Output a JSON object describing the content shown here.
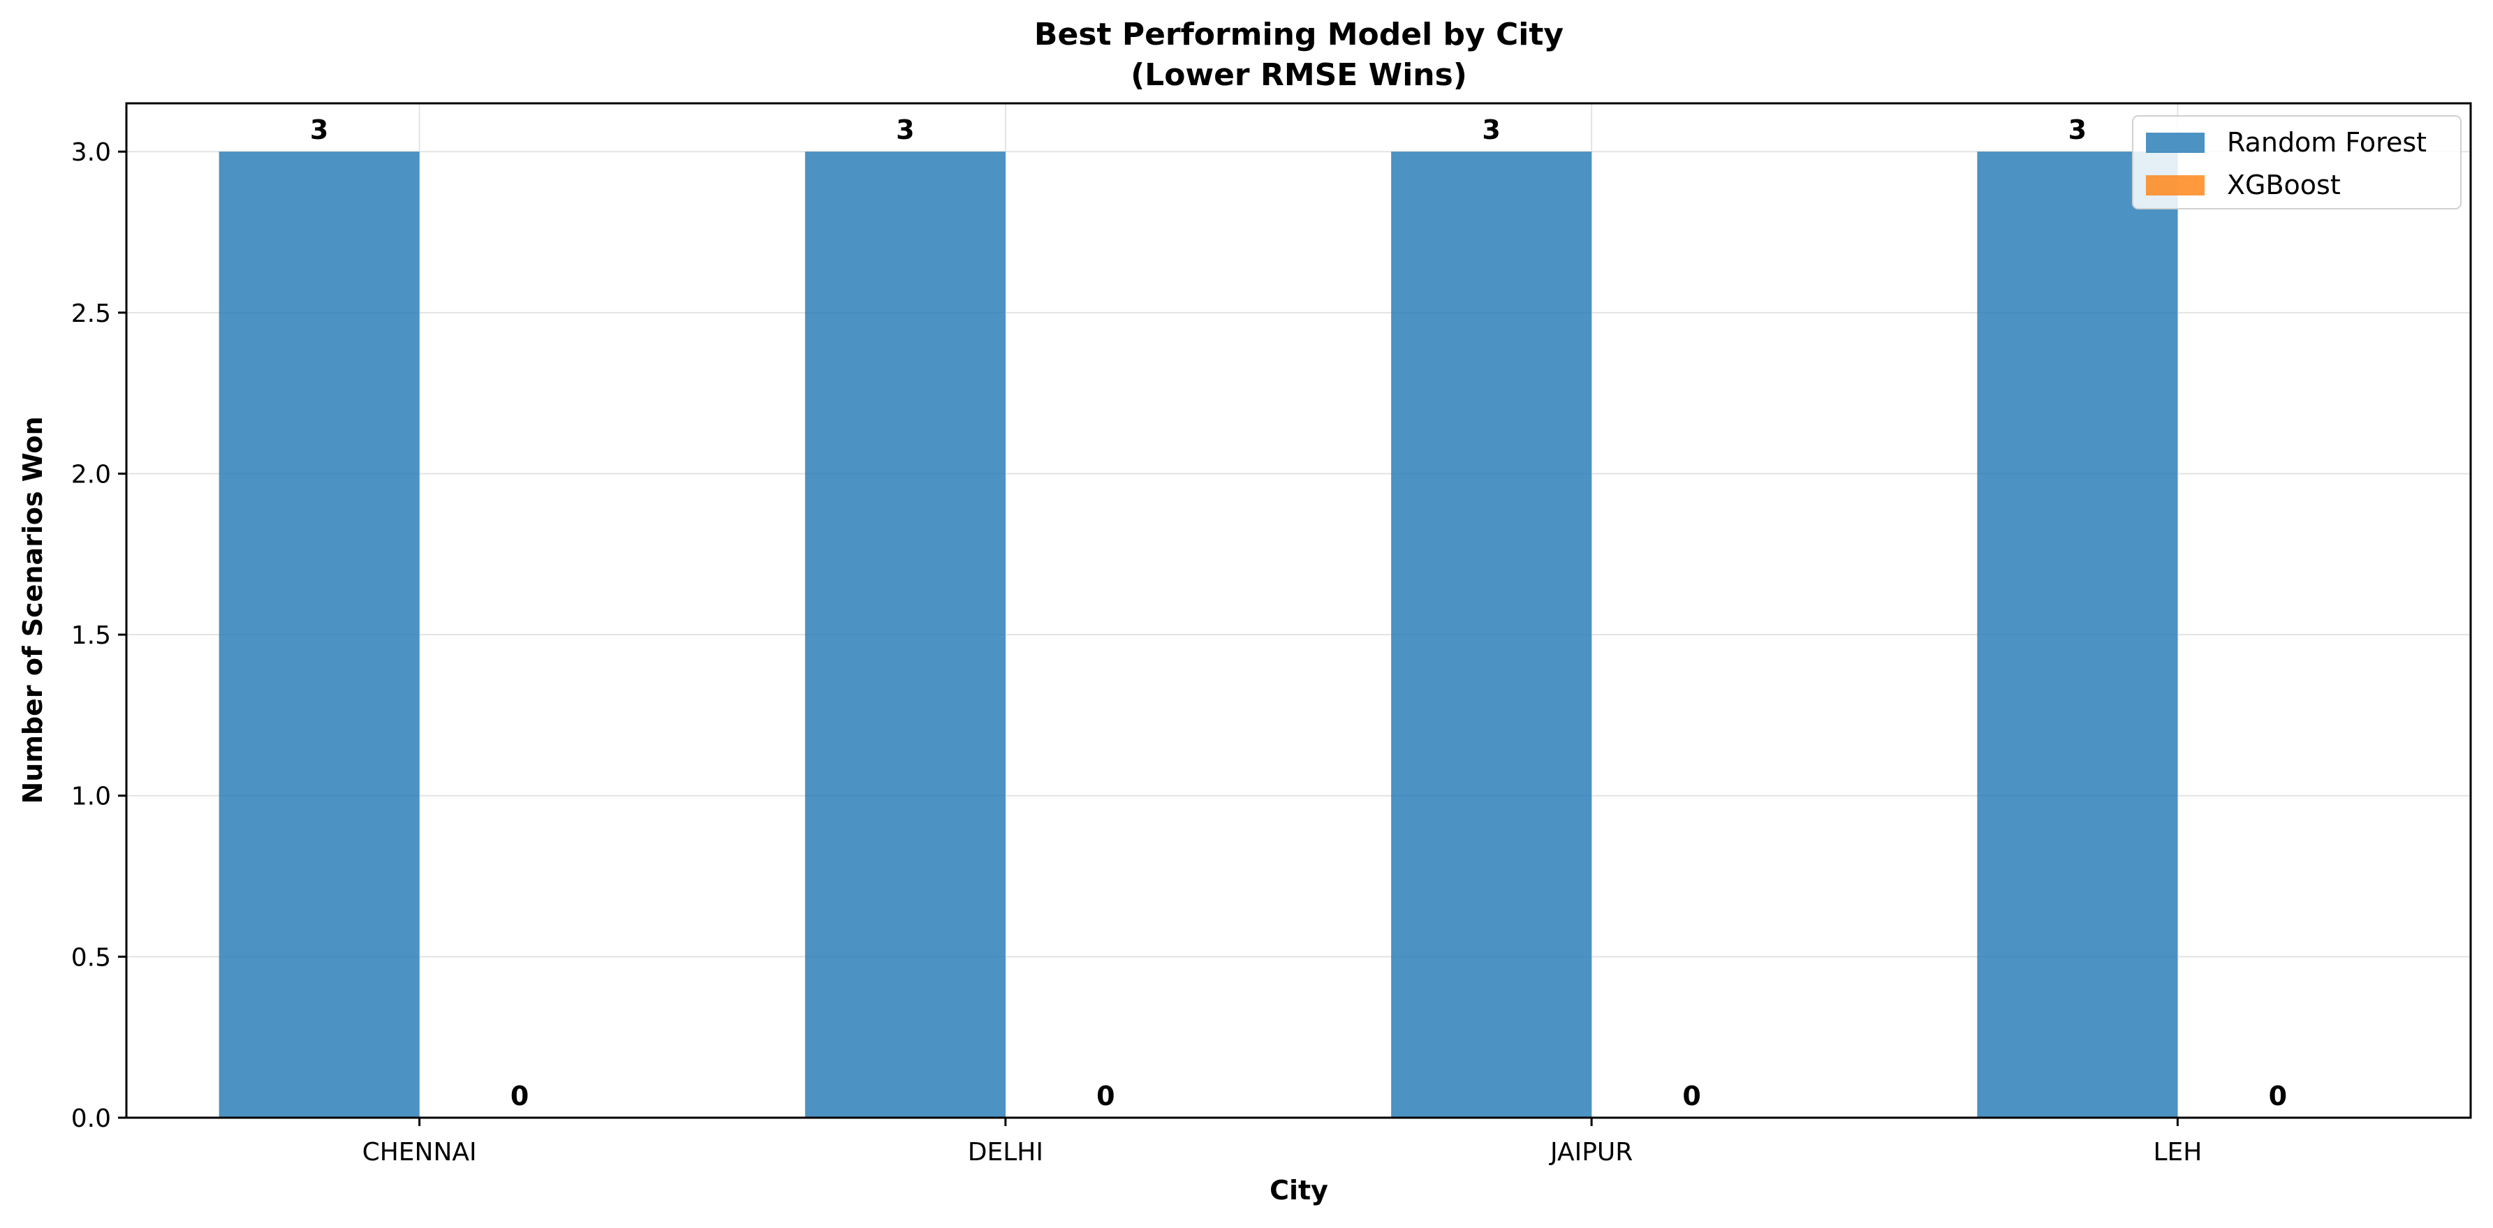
{
  "chart_data": {
    "type": "bar",
    "title": "Best Performing Model by City\n(Lower RMSE Wins)",
    "xlabel": "City",
    "ylabel": "Number of Scenarios Won",
    "categories": [
      "CHENNAI",
      "DELHI",
      "JAIPUR",
      "LEH"
    ],
    "series": [
      {
        "name": "Random Forest",
        "values": [
          3,
          3,
          3,
          3
        ],
        "color": "#1f77b4"
      },
      {
        "name": "XGBoost",
        "values": [
          0,
          0,
          0,
          0
        ],
        "color": "#ff7f0e"
      }
    ],
    "data_labels": [
      [
        "3",
        "3",
        "3",
        "3"
      ],
      [
        "0",
        "0",
        "0",
        "0"
      ]
    ],
    "ylim": [
      0,
      3.15
    ],
    "yticks": [
      0.0,
      0.5,
      1.0,
      1.5,
      2.0,
      2.5,
      3.0
    ],
    "ytick_labels": [
      "0.0",
      "0.5",
      "1.0",
      "1.5",
      "2.0",
      "2.5",
      "3.0"
    ],
    "grid": true,
    "legend_position": "top-right"
  }
}
